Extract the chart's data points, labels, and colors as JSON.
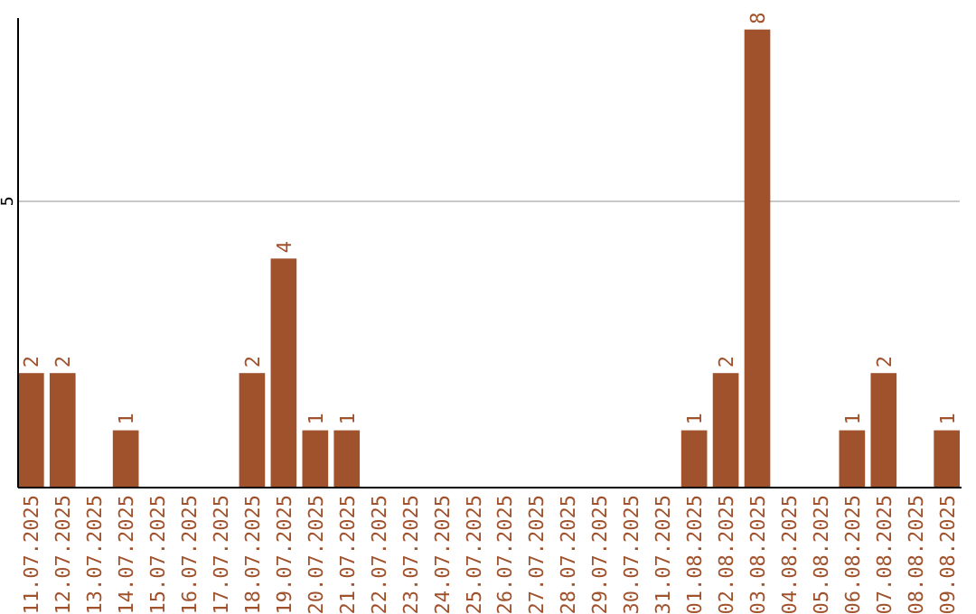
{
  "chart_data": {
    "type": "bar",
    "categories": [
      "11.07.2025",
      "12.07.2025",
      "13.07.2025",
      "14.07.2025",
      "15.07.2025",
      "16.07.2025",
      "17.07.2025",
      "18.07.2025",
      "19.07.2025",
      "20.07.2025",
      "21.07.2025",
      "22.07.2025",
      "23.07.2025",
      "24.07.2025",
      "25.07.2025",
      "26.07.2025",
      "27.07.2025",
      "28.07.2025",
      "29.07.2025",
      "30.07.2025",
      "31.07.2025",
      "01.08.2025",
      "02.08.2025",
      "03.08.2025",
      "04.08.2025",
      "05.08.2025",
      "06.08.2025",
      "07.08.2025",
      "08.08.2025",
      "09.08.2025"
    ],
    "values": [
      2,
      2,
      0,
      1,
      0,
      0,
      0,
      2,
      4,
      1,
      1,
      0,
      0,
      0,
      0,
      0,
      0,
      0,
      0,
      0,
      0,
      1,
      2,
      8,
      0,
      0,
      1,
      2,
      0,
      1
    ],
    "value_labels": [
      "2",
      "2",
      null,
      "1",
      null,
      null,
      null,
      "2",
      "4",
      "1",
      "1",
      null,
      null,
      null,
      null,
      null,
      null,
      null,
      null,
      null,
      null,
      "1",
      "2",
      "8",
      null,
      null,
      "1",
      "2",
      null,
      "1"
    ],
    "color": "#a0522d",
    "ylim": [
      0,
      8.2
    ],
    "yticks": [
      5
    ],
    "grid": "y"
  }
}
